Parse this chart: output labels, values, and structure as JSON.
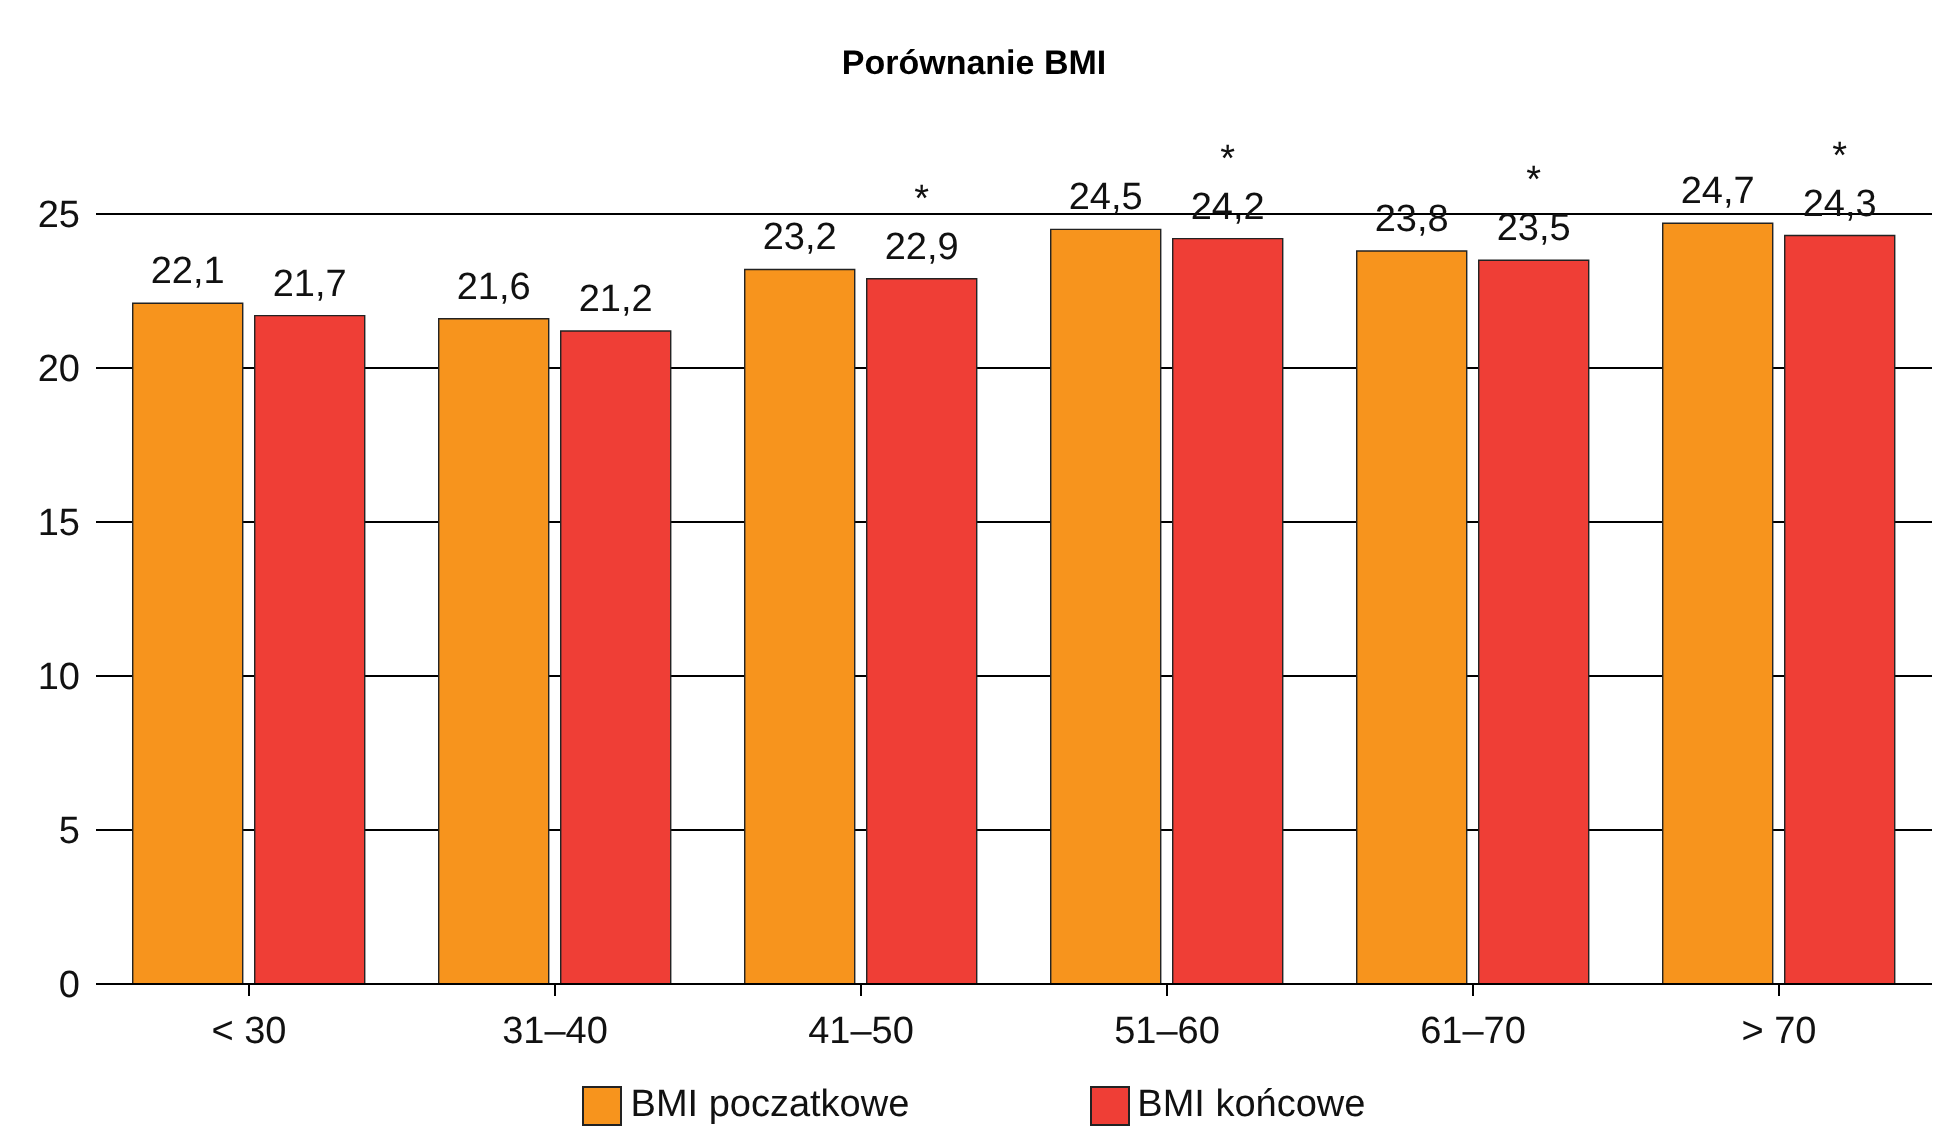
{
  "chart_data": {
    "type": "bar",
    "title": "Porównanie BMI",
    "categories": [
      "< 30",
      "31–40",
      "41–50",
      "51–60",
      "61–70",
      "> 70"
    ],
    "series": [
      {
        "name": "BMI poczatkowe",
        "color": "#f7941d",
        "values": [
          22.1,
          21.6,
          23.2,
          24.5,
          23.8,
          24.7
        ],
        "value_labels": [
          "22,1",
          "21,6",
          "23,2",
          "24,5",
          "23,8",
          "24,7"
        ]
      },
      {
        "name": "BMI końcowe",
        "color": "#ef3e36",
        "values": [
          21.7,
          21.2,
          22.9,
          24.2,
          23.5,
          24.3
        ],
        "value_labels": [
          "21,7",
          "21,2",
          "22,9",
          "24,2",
          "23,5",
          "24,3"
        ]
      }
    ],
    "annotations": [
      {
        "text": "*",
        "x": "41–50",
        "y": 22.9
      },
      {
        "text": "*",
        "x": "51–60",
        "y": 24.2
      },
      {
        "text": "*",
        "x": "61–70",
        "y": 23.5
      },
      {
        "text": "*",
        "x": "> 70",
        "y": 24.3
      }
    ],
    "ylim": [
      0,
      25
    ],
    "yticks": [
      0,
      5,
      10,
      15,
      20,
      25
    ],
    "grid": "y",
    "legend": "bottom"
  }
}
